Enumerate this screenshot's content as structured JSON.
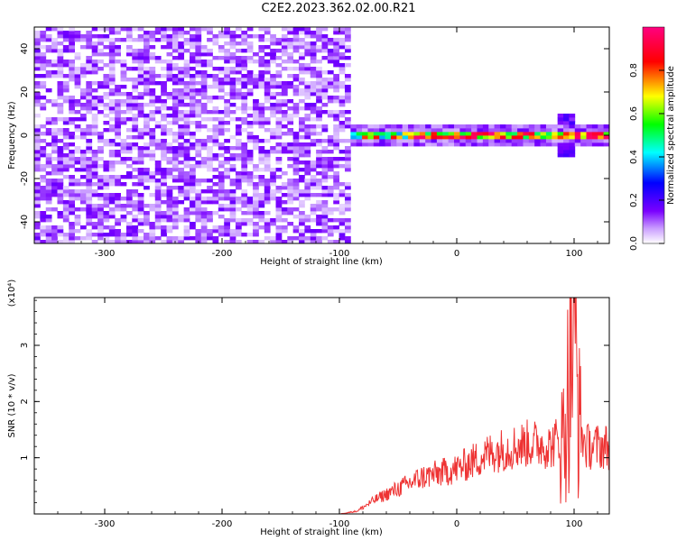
{
  "title": "C2E2.2023.362.02.00.R21",
  "chart_data": [
    {
      "type": "heatmap",
      "xlabel": "Height of straight line (km)",
      "ylabel": "Frequency (Hz)",
      "xlim": [
        -360,
        130
      ],
      "ylim": [
        -50,
        50
      ],
      "xticks": [
        -300,
        -200,
        -100,
        0,
        100
      ],
      "yticks": [
        -40,
        -20,
        0,
        20,
        40
      ],
      "colorbar": {
        "label": "Normalized spectral amplitude",
        "range": [
          0,
          1
        ],
        "ticks": [
          "0.0",
          "0.2",
          "0.4",
          "0.6",
          "0.8"
        ],
        "colors": [
          "#ffffff",
          "#7a00ff",
          "#0000ff",
          "#00ffff",
          "#00ff00",
          "#ffff00",
          "#ff0000",
          "#ff0080"
        ]
      },
      "regions": [
        {
          "x_range": [
            -360,
            -92
          ],
          "freq_range": [
            -50,
            50
          ],
          "amplitude": "0.1-0.3",
          "description": "broadband noise"
        },
        {
          "x_range": [
            -92,
            130
          ],
          "center_freq": 0,
          "halfwidth_hz": 3,
          "amplitude": "0.5-1.0",
          "description": "narrow band near 0 Hz"
        }
      ]
    },
    {
      "type": "line",
      "xlabel": "Height of straight line (km)",
      "ylabel": "SNR (10 * v/v)",
      "yscale_note": "(x10⁴)",
      "xlim": [
        -360,
        130
      ],
      "ylim": [
        0,
        3.85
      ],
      "xticks": [
        -300,
        -200,
        -100,
        0,
        100
      ],
      "yticks": [
        1,
        2,
        3
      ],
      "series": [
        {
          "color": "#ee3333",
          "x": [
            -360,
            -100,
            -85,
            -70,
            -60,
            -50,
            -40,
            -30,
            -20,
            -10,
            0,
            10,
            20,
            30,
            40,
            50,
            60,
            70,
            80,
            85,
            90,
            95,
            98,
            100,
            102,
            105,
            110,
            120,
            130
          ],
          "y": [
            0.0,
            0.0,
            0.05,
            0.25,
            0.35,
            0.45,
            0.55,
            0.65,
            0.7,
            0.75,
            0.8,
            0.9,
            1.0,
            1.1,
            1.15,
            1.2,
            1.25,
            1.25,
            1.2,
            1.3,
            1.25,
            2.2,
            3.0,
            3.85,
            2.5,
            1.5,
            1.2,
            1.2,
            1.2
          ]
        }
      ]
    }
  ]
}
